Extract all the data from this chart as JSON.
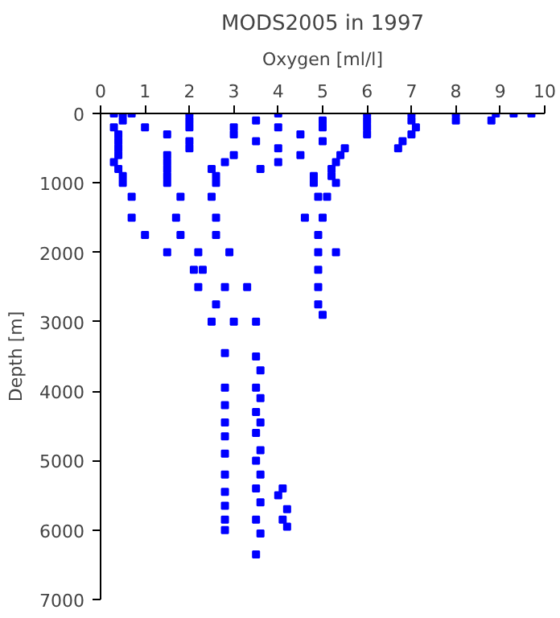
{
  "chart_data": {
    "type": "scatter",
    "title": "MODS2005 in 1997",
    "xlabel": "Oxygen [ml/l]",
    "ylabel": "Depth [m]",
    "xlim": [
      0,
      10
    ],
    "ylim": [
      7000,
      0
    ],
    "xticks": [
      0,
      1,
      2,
      3,
      4,
      5,
      6,
      7,
      8,
      9,
      10
    ],
    "yticks": [
      0,
      1000,
      2000,
      3000,
      4000,
      5000,
      6000,
      7000
    ],
    "grid": false,
    "marker": "square",
    "series": [
      {
        "color": "#0000ff",
        "x": [
          0.3,
          0.5,
          0.7,
          2,
          4,
          6,
          7,
          8,
          8.9,
          9.3,
          9.7,
          0.5,
          2,
          3.5,
          5,
          6,
          7,
          8,
          8.8,
          0.3,
          1,
          2,
          3,
          4,
          5,
          6,
          7.1,
          0.4,
          1.5,
          3,
          4.5,
          6,
          7,
          0.4,
          2,
          3.5,
          5,
          6.8,
          0.4,
          2,
          4,
          5.5,
          6.7,
          0.4,
          1.5,
          3,
          4.5,
          5.4,
          0.3,
          1.5,
          2.8,
          4.0,
          5.3,
          0.4,
          1.5,
          2.5,
          3.6,
          5.2,
          0.5,
          1.5,
          2.6,
          4.8,
          5.2,
          0.5,
          1.5,
          2.6,
          4.8,
          5.3,
          0.7,
          1.8,
          2.5,
          4.9,
          5.1,
          0.7,
          1.7,
          2.6,
          4.6,
          5.0,
          1.0,
          1.8,
          2.6,
          4.9,
          1.5,
          2.2,
          2.9,
          4.9,
          5.3,
          2.1,
          2.3,
          4.9,
          2.2,
          2.8,
          3.3,
          4.9,
          2.6,
          4.9,
          5.0,
          2.5,
          3.0,
          3.5,
          2.8,
          2.8,
          2.8,
          2.8,
          2.8,
          2.8,
          2.8,
          2.8,
          2.8,
          2.8,
          2.8,
          3.5,
          3.6,
          3.5,
          3.6,
          3.5,
          3.6,
          3.5,
          3.6,
          3.5,
          3.6,
          3.5,
          3.6,
          3.5,
          3.6,
          3.5,
          4.1,
          4.0,
          4.2,
          4.1,
          4.2
        ],
        "values": [
          0,
          0,
          0,
          0,
          0,
          0,
          0,
          0,
          0,
          0,
          0,
          100,
          100,
          100,
          100,
          100,
          100,
          100,
          100,
          200,
          200,
          200,
          200,
          200,
          200,
          200,
          200,
          300,
          300,
          300,
          300,
          300,
          300,
          400,
          400,
          400,
          400,
          400,
          500,
          500,
          500,
          500,
          500,
          600,
          600,
          600,
          600,
          600,
          700,
          700,
          700,
          700,
          700,
          800,
          800,
          800,
          800,
          800,
          900,
          900,
          900,
          900,
          900,
          1000,
          1000,
          1000,
          1000,
          1000,
          1200,
          1200,
          1200,
          1200,
          1200,
          1500,
          1500,
          1500,
          1500,
          1500,
          1750,
          1750,
          1750,
          1750,
          2000,
          2000,
          2000,
          2000,
          2000,
          2250,
          2250,
          2250,
          2500,
          2500,
          2500,
          2500,
          2750,
          2750,
          2900,
          3000,
          3000,
          3000,
          3450,
          3950,
          4200,
          4450,
          4650,
          4900,
          5200,
          5450,
          5650,
          5850,
          6000,
          3500,
          3700,
          3950,
          4100,
          4300,
          4450,
          4600,
          4850,
          5000,
          5200,
          5400,
          5600,
          5850,
          6050,
          6350,
          5400,
          5500,
          5700,
          5850,
          5950
        ]
      }
    ]
  }
}
